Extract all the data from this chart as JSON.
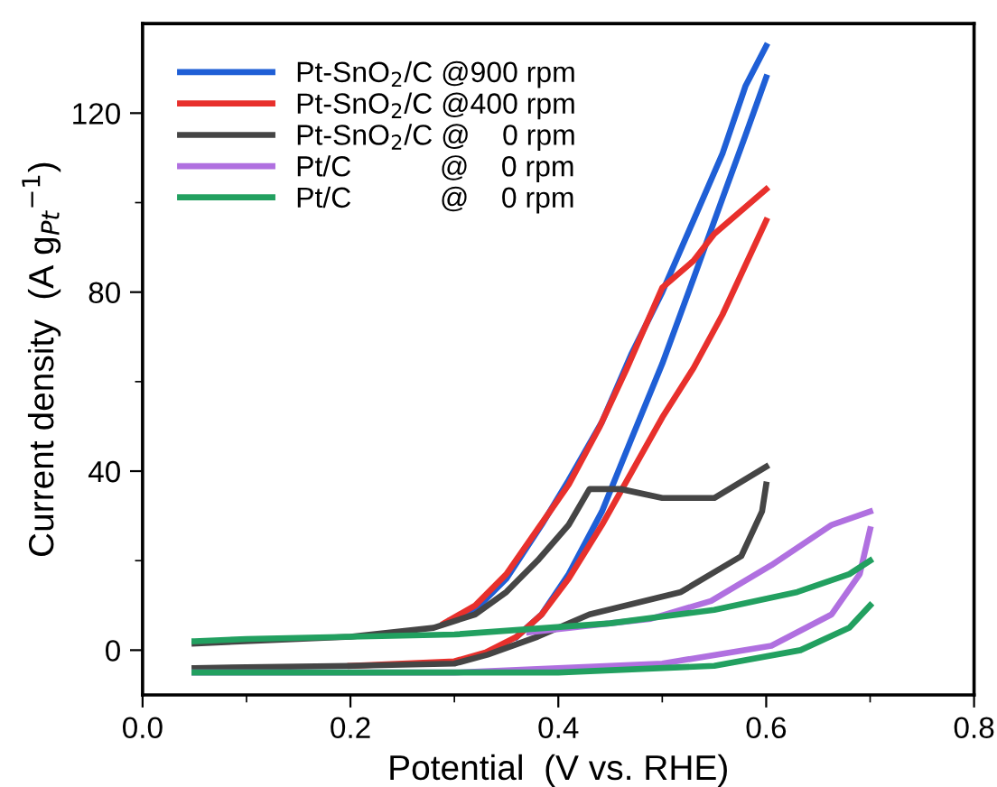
{
  "chart_data": {
    "type": "line",
    "xlabel": "Potential  (V vs. RHE)",
    "ylabel": "Current density  (A g$_{Pt}$$^{−1}$)",
    "xlim": [
      0.0,
      0.8
    ],
    "xticks": [
      {
        "value": 0.0,
        "label": "0.0"
      },
      0.2,
      0.4,
      0.6,
      0.8
    ],
    "ylim": [
      -10,
      140
    ],
    "yticks": [
      0,
      40,
      80,
      120
    ],
    "grid": false,
    "legend": "top left",
    "marker": "none",
    "line_style": "solid",
    "series": [
      {
        "name": "Pt-SnO$_{2}$/C @900 rpm",
        "color": "#1f5fd6",
        "x": [
          0.36,
          0.384,
          0.41,
          0.442,
          0.47,
          0.5,
          0.53,
          0.558,
          0.58,
          0.6
        ],
        "values": [
          3,
          8,
          17,
          31,
          47,
          64,
          83,
          101,
          115,
          128
        ]
      },
      {
        "color": "#1f5fd6",
        "x": [
          0.297,
          0.32,
          0.35,
          0.384,
          0.41,
          0.442,
          0.47,
          0.5,
          0.53,
          0.558,
          0.58,
          0.6
        ],
        "values": [
          6.8,
          9,
          16,
          28,
          38,
          51,
          66,
          80,
          96,
          111,
          126,
          135
        ]
      },
      {
        "name": "Pt-SnO$_{2}$/C @400 rpm",
        "color": "#e8302c",
        "x": [
          0.2,
          0.3,
          0.33,
          0.36,
          0.384,
          0.41,
          0.442,
          0.471,
          0.5,
          0.53,
          0.558,
          0.58,
          0.6
        ],
        "values": [
          -3.5,
          -2.5,
          -0.5,
          3,
          8,
          16,
          28,
          40,
          52,
          63,
          75,
          86,
          96
        ]
      },
      {
        "color": "#e8302c",
        "x": [
          0.29,
          0.32,
          0.35,
          0.38,
          0.41,
          0.44,
          0.466,
          0.5,
          0.53,
          0.55,
          0.58,
          0.6
        ],
        "values": [
          6,
          10,
          17,
          27,
          37,
          50,
          63,
          81,
          87,
          93,
          99,
          103
        ]
      },
      {
        "name": "Pt-SnO$_{2}$/C @    0 rpm",
        "color": "#454545",
        "x": [
          0.05,
          0.2,
          0.3,
          0.332,
          0.38,
          0.43,
          0.518,
          0.576,
          0.596,
          0.6
        ],
        "values": [
          -4,
          -3.5,
          -3,
          -1,
          3,
          8,
          13,
          21,
          31,
          37
        ]
      },
      {
        "color": "#454545",
        "x": [
          0.05,
          0.2,
          0.28,
          0.32,
          0.35,
          0.38,
          0.41,
          0.43,
          0.46,
          0.5,
          0.55,
          0.6
        ],
        "values": [
          1.5,
          3,
          5,
          8,
          13,
          20,
          28,
          36,
          36,
          34,
          34,
          41
        ]
      },
      {
        "name": "Pt/C           @    0 rpm",
        "color": "#b070e0",
        "x": [
          0.05,
          0.3,
          0.5,
          0.605,
          0.663,
          0.69,
          0.7
        ],
        "values": [
          -5,
          -5,
          -3,
          1,
          8,
          17,
          27
        ]
      },
      {
        "color": "#b070e0",
        "x": [
          0.372,
          0.489,
          0.547,
          0.605,
          0.663,
          0.7
        ],
        "values": [
          4,
          7,
          11,
          19,
          28,
          31
        ]
      },
      {
        "name": "Pt/C           @    0 rpm",
        "color": "#22a060",
        "x": [
          0.05,
          0.4,
          0.55,
          0.633,
          0.68,
          0.7
        ],
        "values": [
          -5,
          -5,
          -3.5,
          0,
          5,
          10
        ]
      },
      {
        "color": "#22a060",
        "x": [
          0.05,
          0.1,
          0.3,
          0.45,
          0.55,
          0.63,
          0.68,
          0.7
        ],
        "values": [
          2,
          2.5,
          3.5,
          6,
          9,
          13,
          17,
          20
        ]
      }
    ]
  }
}
